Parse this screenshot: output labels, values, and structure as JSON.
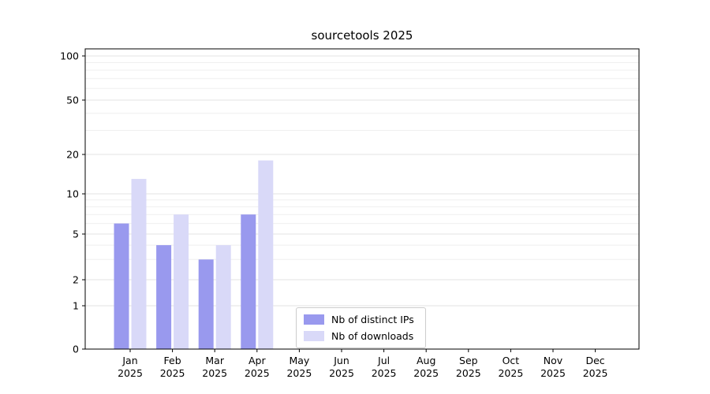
{
  "title": "sourcetools 2025",
  "chart_data": {
    "type": "bar",
    "title": "sourcetools 2025",
    "categories": [
      "Jan",
      "Feb",
      "Mar",
      "Apr",
      "May",
      "Jun",
      "Jul",
      "Aug",
      "Sep",
      "Oct",
      "Nov",
      "Dec"
    ],
    "year": "2025",
    "series": [
      {
        "name": "Nb of distinct IPs",
        "color": "#9999ee",
        "values": [
          6,
          4,
          3,
          7,
          0,
          0,
          0,
          0,
          0,
          0,
          0,
          0
        ]
      },
      {
        "name": "Nb of downloads",
        "color": "#d9d9f8",
        "values": [
          13,
          7,
          4,
          18,
          0,
          0,
          0,
          0,
          0,
          0,
          0,
          0
        ]
      }
    ],
    "y_axis": {
      "scale": "symlog",
      "ticks": [
        0,
        1,
        2,
        5,
        10,
        20,
        50,
        100
      ],
      "min": 0,
      "max": 100
    },
    "legend": {
      "entries": [
        "Nb of distinct IPs",
        "Nb of downloads"
      ],
      "position": "lower-center-inside"
    },
    "grid": "horizontal major and minor"
  },
  "colors": {
    "background": "#ffffff",
    "grid_major": "#e3e3e3",
    "grid_minor": "#efefef",
    "axis": "#000000",
    "text": "#000000",
    "legend_border": "#cccccc"
  }
}
